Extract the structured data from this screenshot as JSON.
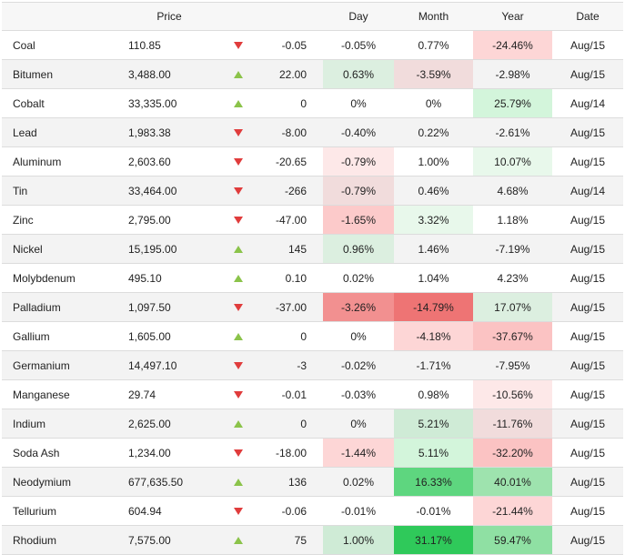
{
  "header": {
    "name": "",
    "price": "Price",
    "arrow": "",
    "change": "",
    "day": "Day",
    "month": "Month",
    "year": "Year",
    "date": "Date"
  },
  "rows": [
    {
      "name": "Coal",
      "price": "110.85",
      "dir": "down",
      "change": "-0.05",
      "day": "-0.05%",
      "month": "0.77%",
      "year": "-24.46%",
      "date": "Aug/15",
      "day_bg": "",
      "month_bg": "",
      "year_bg": "#fdd6d6"
    },
    {
      "name": "Bitumen",
      "price": "3,488.00",
      "dir": "up",
      "change": "22.00",
      "day": "0.63%",
      "month": "-3.59%",
      "year": "-2.98%",
      "date": "Aug/15",
      "day_bg": "#dcefe0",
      "month_bg": "#f1dcdc",
      "year_bg": ""
    },
    {
      "name": "Cobalt",
      "price": "33,335.00",
      "dir": "up",
      "change": "0",
      "day": "0%",
      "month": "0%",
      "year": "25.79%",
      "date": "Aug/14",
      "day_bg": "",
      "month_bg": "",
      "year_bg": "#d3f5db"
    },
    {
      "name": "Lead",
      "price": "1,983.38",
      "dir": "down",
      "change": "-8.00",
      "day": "-0.40%",
      "month": "0.22%",
      "year": "-2.61%",
      "date": "Aug/15",
      "day_bg": "",
      "month_bg": "",
      "year_bg": ""
    },
    {
      "name": "Aluminum",
      "price": "2,603.60",
      "dir": "down",
      "change": "-20.65",
      "day": "-0.79%",
      "month": "1.00%",
      "year": "10.07%",
      "date": "Aug/15",
      "day_bg": "#fde8e8",
      "month_bg": "",
      "year_bg": "#e8f8eb"
    },
    {
      "name": "Tin",
      "price": "33,464.00",
      "dir": "down",
      "change": "-266",
      "day": "-0.79%",
      "month": "0.46%",
      "year": "4.68%",
      "date": "Aug/14",
      "day_bg": "#f1dcdc",
      "month_bg": "",
      "year_bg": ""
    },
    {
      "name": "Zinc",
      "price": "2,795.00",
      "dir": "down",
      "change": "-47.00",
      "day": "-1.65%",
      "month": "3.32%",
      "year": "1.18%",
      "date": "Aug/15",
      "day_bg": "#fccaca",
      "month_bg": "#e8f8eb",
      "year_bg": ""
    },
    {
      "name": "Nickel",
      "price": "15,195.00",
      "dir": "up",
      "change": "145",
      "day": "0.96%",
      "month": "1.46%",
      "year": "-7.19%",
      "date": "Aug/15",
      "day_bg": "#dcefe0",
      "month_bg": "",
      "year_bg": ""
    },
    {
      "name": "Molybdenum",
      "price": "495.10",
      "dir": "up",
      "change": "0.10",
      "day": "0.02%",
      "month": "1.04%",
      "year": "4.23%",
      "date": "Aug/15",
      "day_bg": "",
      "month_bg": "",
      "year_bg": ""
    },
    {
      "name": "Palladium",
      "price": "1,097.50",
      "dir": "down",
      "change": "-37.00",
      "day": "-3.26%",
      "month": "-14.79%",
      "year": "17.07%",
      "date": "Aug/15",
      "day_bg": "#f29090",
      "month_bg": "#ee7474",
      "year_bg": "#dcefe0"
    },
    {
      "name": "Gallium",
      "price": "1,605.00",
      "dir": "up",
      "change": "0",
      "day": "0%",
      "month": "-4.18%",
      "year": "-37.67%",
      "date": "Aug/15",
      "day_bg": "",
      "month_bg": "#fdd6d6",
      "year_bg": "#fbc3c3"
    },
    {
      "name": "Germanium",
      "price": "14,497.10",
      "dir": "down",
      "change": "-3",
      "day": "-0.02%",
      "month": "-1.71%",
      "year": "-7.95%",
      "date": "Aug/15",
      "day_bg": "",
      "month_bg": "",
      "year_bg": ""
    },
    {
      "name": "Manganese",
      "price": "29.74",
      "dir": "down",
      "change": "-0.01",
      "day": "-0.03%",
      "month": "0.98%",
      "year": "-10.56%",
      "date": "Aug/15",
      "day_bg": "",
      "month_bg": "",
      "year_bg": "#fde8e8"
    },
    {
      "name": "Indium",
      "price": "2,625.00",
      "dir": "up",
      "change": "0",
      "day": "0%",
      "month": "5.21%",
      "year": "-11.76%",
      "date": "Aug/15",
      "day_bg": "",
      "month_bg": "#cfebd6",
      "year_bg": "#f1dcdc"
    },
    {
      "name": "Soda Ash",
      "price": "1,234.00",
      "dir": "down",
      "change": "-18.00",
      "day": "-1.44%",
      "month": "5.11%",
      "year": "-32.20%",
      "date": "Aug/15",
      "day_bg": "#fdd6d6",
      "month_bg": "#d3f5db",
      "year_bg": "#fbc3c3"
    },
    {
      "name": "Neodymium",
      "price": "677,635.50",
      "dir": "up",
      "change": "136",
      "day": "0.02%",
      "month": "16.33%",
      "year": "40.01%",
      "date": "Aug/15",
      "day_bg": "",
      "month_bg": "#5ed67f",
      "year_bg": "#9ee3ae"
    },
    {
      "name": "Tellurium",
      "price": "604.94",
      "dir": "down",
      "change": "-0.06",
      "day": "-0.01%",
      "month": "-0.01%",
      "year": "-21.44%",
      "date": "Aug/15",
      "day_bg": "",
      "month_bg": "",
      "year_bg": "#fdd6d6"
    },
    {
      "name": "Rhodium",
      "price": "7,575.00",
      "dir": "up",
      "change": "75",
      "day": "1.00%",
      "month": "31.17%",
      "year": "59.47%",
      "date": "Aug/15",
      "day_bg": "#cfebd6",
      "month_bg": "#2fc95a",
      "year_bg": "#8fe0a3"
    }
  ]
}
